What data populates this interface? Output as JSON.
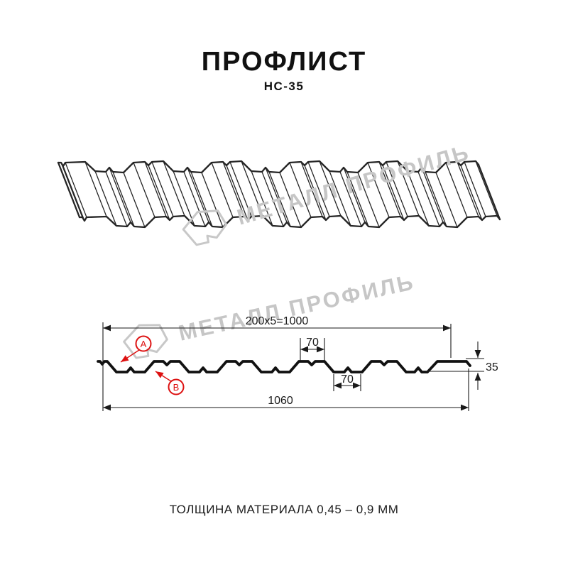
{
  "page": {
    "title": "ПРОФЛИСТ",
    "subtitle": "НС-35",
    "footer_note": "ТОЛЩИНА МАТЕРИАЛА 0,45 – 0,9 ММ"
  },
  "watermark": {
    "brand_text": "МЕТАЛЛ ПРОФИЛЬ",
    "logo_icon": "metall-profil-hexagon-logo",
    "color": "#c6c6c6"
  },
  "section_drawing": {
    "dim_working_width": "200x5=1000",
    "dim_rib_top_width": "70",
    "dim_rib_bottom_width": "70",
    "dim_full_width": "1060",
    "dim_profile_height": "35",
    "callout_a": "A",
    "callout_b": "B",
    "line_color": "#1a1a1a",
    "callout_color": "#dd1111"
  }
}
